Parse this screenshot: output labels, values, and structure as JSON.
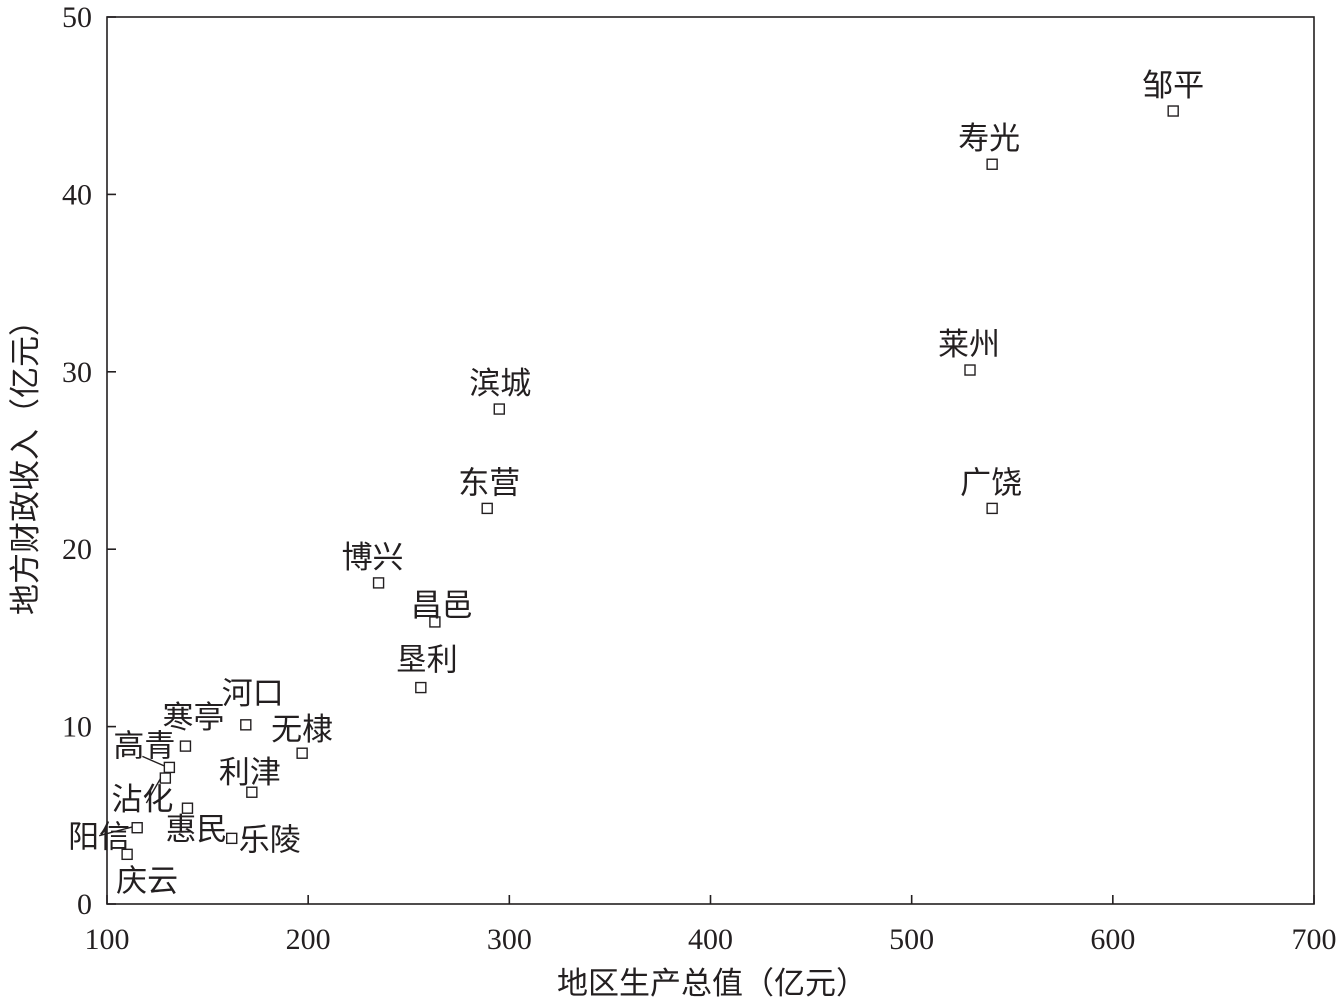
{
  "chart_data": {
    "type": "scatter",
    "xlabel": "地区生产总值（亿元）",
    "ylabel": "地方财政收入（亿元）",
    "xlim": [
      100,
      700
    ],
    "ylim": [
      0,
      50
    ],
    "xticks": [
      "100",
      "200",
      "300",
      "400",
      "500",
      "600",
      "700"
    ],
    "yticks": [
      "0",
      "10",
      "20",
      "30",
      "40",
      "50"
    ],
    "grid": false,
    "marker": "open-square",
    "points": [
      {
        "label": "邹平",
        "x": 630,
        "y": 44.7
      },
      {
        "label": "寿光",
        "x": 540,
        "y": 41.7
      },
      {
        "label": "莱州",
        "x": 529,
        "y": 30.1
      },
      {
        "label": "广饶",
        "x": 540,
        "y": 22.3
      },
      {
        "label": "滨城",
        "x": 295,
        "y": 27.9
      },
      {
        "label": "东营",
        "x": 289,
        "y": 22.3
      },
      {
        "label": "博兴",
        "x": 235,
        "y": 18.1
      },
      {
        "label": "昌邑",
        "x": 263,
        "y": 15.9
      },
      {
        "label": "垦利",
        "x": 256,
        "y": 12.2
      },
      {
        "label": "河口",
        "x": 169,
        "y": 10.1
      },
      {
        "label": "无棣",
        "x": 197,
        "y": 8.5
      },
      {
        "label": "寒亭",
        "x": 139,
        "y": 8.9
      },
      {
        "label": "高青",
        "x": 131,
        "y": 7.7
      },
      {
        "label": "利津",
        "x": 172,
        "y": 6.3
      },
      {
        "label": "沾化",
        "x": 129,
        "y": 7.1
      },
      {
        "label": "惠民",
        "x": 140,
        "y": 5.4
      },
      {
        "label": "乐陵",
        "x": 162,
        "y": 3.7
      },
      {
        "label": "阳信",
        "x": 115,
        "y": 4.3
      },
      {
        "label": "庆云",
        "x": 110,
        "y": 2.8
      }
    ]
  }
}
